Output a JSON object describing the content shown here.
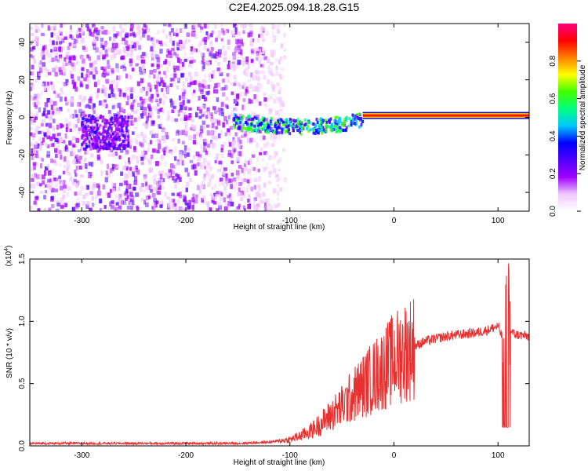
{
  "title": "C2E4.2025.094.18.28.G15",
  "chart_data": [
    {
      "type": "heatmap",
      "xlabel": "Height of straight line (km)",
      "ylabel": "Frequency (Hz)",
      "xlim": [
        -350,
        130
      ],
      "ylim": [
        -50,
        50
      ],
      "x_ticks": [
        "-300",
        "-200",
        "-100",
        "0",
        "100"
      ],
      "y_ticks": [
        "-40",
        "-20",
        "0",
        "20",
        "40"
      ],
      "colorbar": {
        "label": "Normalized spectral amplitude",
        "range": [
          0,
          1
        ],
        "ticks": [
          "0.0",
          "0.2",
          "0.4",
          "0.6",
          "0.8"
        ],
        "colors": [
          "#ffffff",
          "#f0c8ff",
          "#a000ff",
          "#5000ff",
          "#0000ff",
          "#00c8ff",
          "#00ff80",
          "#40ff00",
          "#ffff00",
          "#ff8000",
          "#ff0000",
          "#ff0080"
        ]
      },
      "features": [
        {
          "description": "diffuse purple noise from -350 to about -105 km across all frequencies",
          "x_range": [
            -350,
            -105
          ],
          "amplitude": 0.15
        },
        {
          "description": "signal cluster near -290 to -255 km around -8 Hz",
          "x_range": [
            -300,
            -255
          ],
          "y_center": -8,
          "amplitude": 0.22
        },
        {
          "description": "signal track emerging near -150 km at about 0 Hz dipping to -3 Hz near -40 km",
          "x_range": [
            -155,
            -30
          ],
          "y_center": -2,
          "amplitude": 0.45
        },
        {
          "description": "strong carrier line at about 1 Hz",
          "x_range": [
            -30,
            130
          ],
          "y_center": 1,
          "amplitude": 0.95
        }
      ]
    },
    {
      "type": "line",
      "xlabel": "Height of straight line (km)",
      "ylabel": "SNR (10 * v/v)",
      "y_multiplier": "(x10^4)",
      "xlim": [
        -350,
        130
      ],
      "ylim": [
        0,
        1.5
      ],
      "x_ticks": [
        "-300",
        "-200",
        "-100",
        "0",
        "100"
      ],
      "y_ticks": [
        "0.0",
        "0.5",
        "1.0",
        "1.5"
      ],
      "color": "#e83030",
      "series": [
        {
          "x": [
            -350,
            -300,
            -250,
            -200,
            -150,
            -120,
            -100,
            -90,
            -80,
            -70,
            -60,
            -50,
            -40,
            -30,
            -20,
            -10,
            0,
            10,
            20,
            30,
            40,
            50,
            60,
            70,
            80,
            90,
            100,
            105,
            108,
            110,
            115,
            120,
            130
          ],
          "values": [
            0.02,
            0.02,
            0.02,
            0.02,
            0.02,
            0.03,
            0.05,
            0.08,
            0.12,
            0.18,
            0.25,
            0.32,
            0.4,
            0.48,
            0.55,
            0.62,
            0.7,
            0.76,
            0.8,
            0.84,
            0.86,
            0.88,
            0.89,
            0.9,
            0.91,
            0.93,
            0.96,
            0.85,
            0.12,
            0.95,
            0.9,
            0.89,
            0.88
          ]
        }
      ]
    }
  ]
}
